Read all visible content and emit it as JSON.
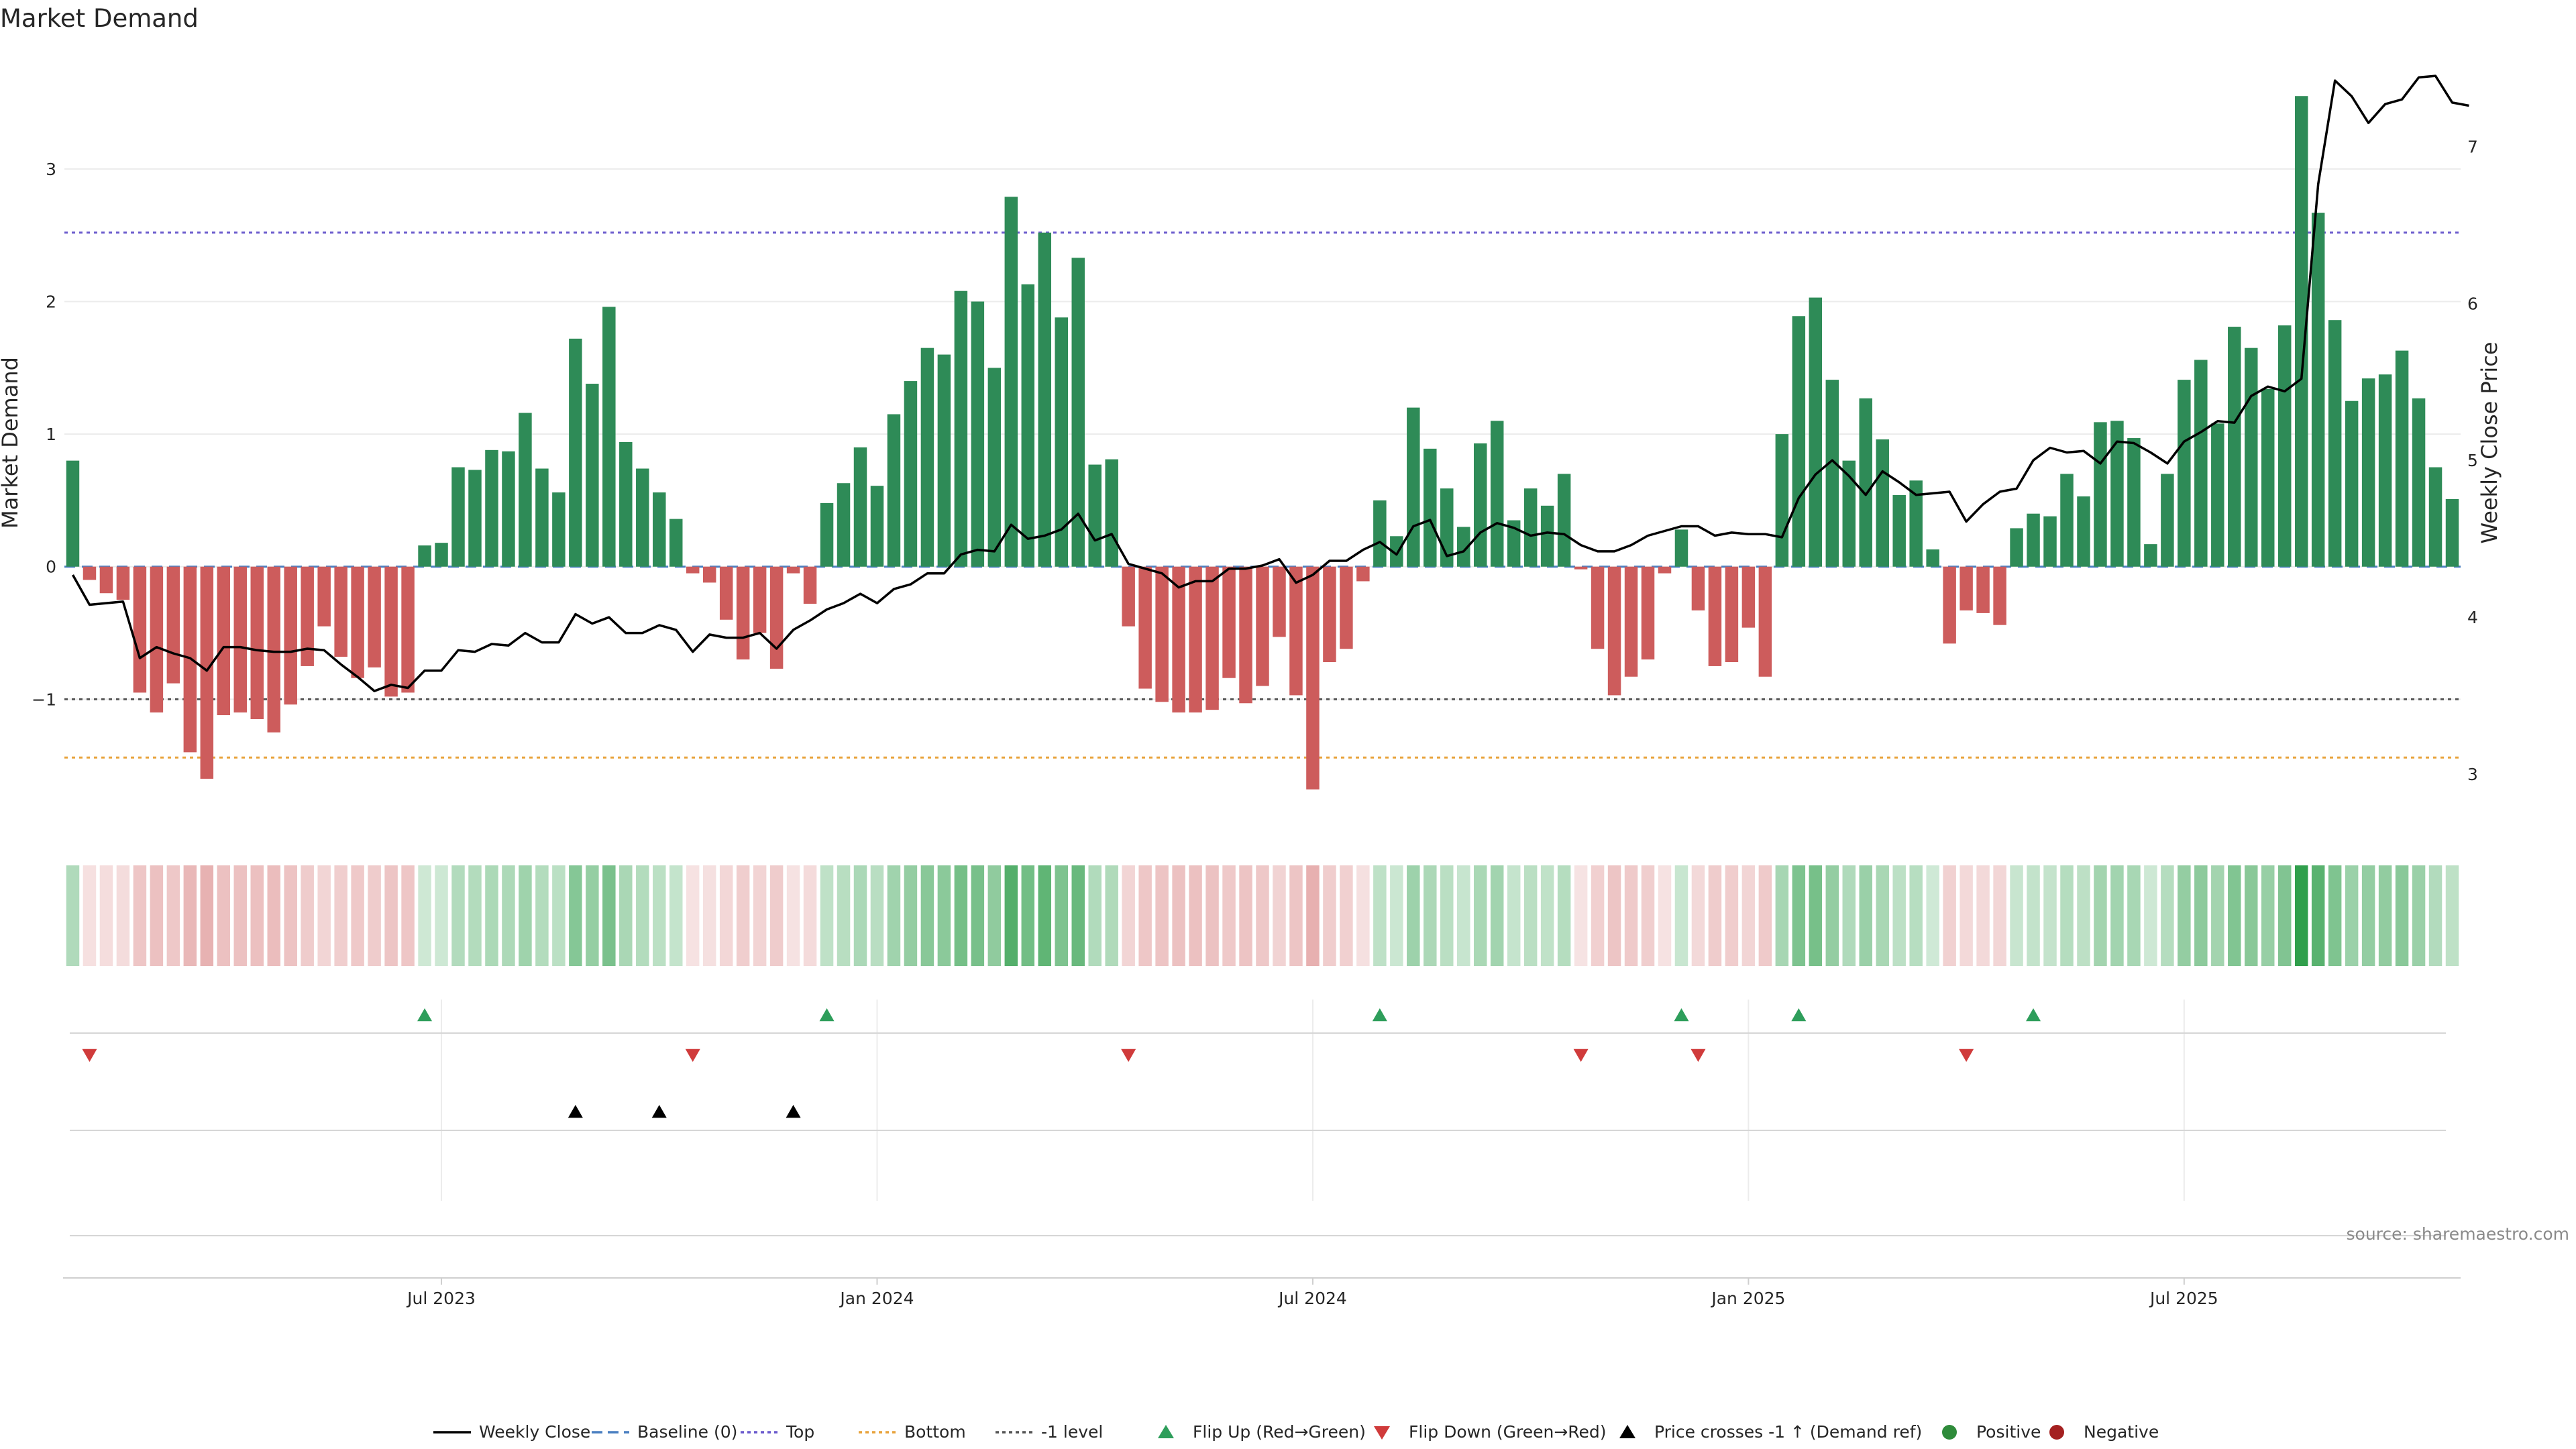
{
  "chart_data": {
    "type": "bar",
    "title": "Market Demand",
    "ylabel": "Market Demand",
    "y2label": "Weekly Close Price",
    "ylim": [
      -1.98,
      3.88
    ],
    "y2lim": [
      2.65,
      7.6
    ],
    "yticks": [
      3,
      2,
      1,
      0,
      -1
    ],
    "yticklabels": [
      "3",
      "2",
      "1",
      "0",
      "−1"
    ],
    "y2ticks": [
      7,
      6,
      5,
      4,
      3
    ],
    "y2ticklabels": [
      "7",
      "6",
      "5",
      "4",
      "3"
    ],
    "grid": true,
    "legend_position": "bottom",
    "levels": {
      "top": 2.52,
      "bottom": -1.44,
      "minus_one": -1.0,
      "baseline": 0
    },
    "x_ticks": [
      {
        "label": "Jul 2023",
        "index": 22
      },
      {
        "label": "Jan 2024",
        "index": 48
      },
      {
        "label": "Jul 2024",
        "index": 74
      },
      {
        "label": "Jan 2025",
        "index": 100
      },
      {
        "label": "Jul 2025",
        "index": 126
      }
    ],
    "demand": [
      0.8,
      -0.1,
      -0.2,
      -0.25,
      -0.95,
      -1.1,
      -0.88,
      -1.4,
      -1.6,
      -1.12,
      -1.1,
      -1.15,
      -1.25,
      -1.04,
      -0.75,
      -0.45,
      -0.68,
      -0.84,
      -0.76,
      -0.98,
      -0.95,
      0.16,
      0.18,
      0.75,
      0.73,
      0.88,
      0.87,
      1.16,
      0.74,
      0.56,
      1.72,
      1.38,
      1.96,
      0.94,
      0.74,
      0.56,
      0.36,
      -0.05,
      -0.12,
      -0.4,
      -0.7,
      -0.5,
      -0.77,
      -0.05,
      -0.28,
      0.48,
      0.63,
      0.9,
      0.61,
      1.15,
      1.4,
      1.65,
      1.6,
      2.08,
      2.0,
      1.5,
      2.79,
      2.13,
      2.52,
      1.88,
      2.33,
      0.77,
      0.81,
      -0.45,
      -0.92,
      -1.02,
      -1.1,
      -1.1,
      -1.08,
      -0.84,
      -1.03,
      -0.9,
      -0.53,
      -0.97,
      -1.68,
      -0.72,
      -0.62,
      -0.11,
      0.5,
      0.23,
      1.2,
      0.89,
      0.59,
      0.3,
      0.93,
      1.1,
      0.35,
      0.59,
      0.46,
      0.7,
      -0.02,
      -0.62,
      -0.97,
      -0.83,
      -0.7,
      -0.05,
      0.28,
      -0.33,
      -0.75,
      -0.72,
      -0.46,
      -0.83,
      1.0,
      1.89,
      2.03,
      1.41,
      0.8,
      1.27,
      0.96,
      0.54,
      0.65,
      0.13,
      -0.58,
      -0.33,
      -0.35,
      -0.44,
      0.29,
      0.4,
      0.38,
      0.7,
      0.53,
      1.09,
      1.1,
      0.97,
      0.17,
      0.7,
      1.41,
      1.56,
      1.08,
      1.81,
      1.65,
      1.34,
      1.82,
      3.55,
      2.67,
      1.86,
      1.25,
      1.42,
      1.45,
      1.63,
      1.27,
      0.75,
      0.51
    ],
    "weekly_close": [
      4.27,
      4.08,
      4.09,
      4.1,
      3.74,
      3.81,
      3.77,
      3.74,
      3.66,
      3.81,
      3.81,
      3.79,
      3.78,
      3.78,
      3.8,
      3.79,
      3.7,
      3.62,
      3.53,
      3.57,
      3.55,
      3.66,
      3.66,
      3.79,
      3.78,
      3.83,
      3.82,
      3.9,
      3.84,
      3.84,
      4.02,
      3.96,
      4.0,
      3.9,
      3.9,
      3.95,
      3.92,
      3.78,
      3.89,
      3.87,
      3.87,
      3.9,
      3.8,
      3.92,
      3.98,
      4.05,
      4.09,
      4.15,
      4.09,
      4.18,
      4.21,
      4.28,
      4.28,
      4.4,
      4.43,
      4.42,
      4.59,
      4.5,
      4.52,
      4.56,
      4.66,
      4.49,
      4.53,
      4.34,
      4.31,
      4.28,
      4.19,
      4.23,
      4.23,
      4.31,
      4.31,
      4.33,
      4.37,
      4.22,
      4.27,
      4.36,
      4.36,
      4.43,
      4.48,
      4.4,
      4.58,
      4.62,
      4.39,
      4.42,
      4.54,
      4.6,
      4.57,
      4.52,
      4.54,
      4.53,
      4.46,
      4.42,
      4.42,
      4.46,
      4.52,
      4.55,
      4.58,
      4.58,
      4.52,
      4.54,
      4.53,
      4.53,
      4.51,
      4.76,
      4.91,
      5.0,
      4.9,
      4.78,
      4.93,
      4.86,
      4.78,
      4.79,
      4.8,
      4.61,
      4.72,
      4.8,
      4.82,
      5.0,
      5.08,
      5.05,
      5.06,
      4.98,
      5.12,
      5.11,
      5.05,
      4.98,
      5.12,
      5.18,
      5.25,
      5.24,
      5.41,
      5.47,
      5.44,
      5.52,
      6.76,
      7.42,
      7.32,
      7.15,
      7.27,
      7.3,
      7.44,
      7.45,
      7.28,
      7.26
    ],
    "flip_up_indices": [
      21,
      45,
      78,
      96,
      103,
      117
    ],
    "flip_down_indices": [
      1,
      37,
      63,
      90,
      97,
      113
    ],
    "price_cross_indices": [
      30,
      35,
      43
    ],
    "legend": [
      {
        "label": "Weekly Close",
        "kind": "line",
        "color": "#000000"
      },
      {
        "label": "Baseline (0)",
        "kind": "dash",
        "color": "#4a7fc1"
      },
      {
        "label": "Top",
        "kind": "dot",
        "color": "#6a5acd"
      },
      {
        "label": "Bottom",
        "kind": "dot",
        "color": "#e8a33c"
      },
      {
        "label": "-1 level",
        "kind": "dot",
        "color": "#555555"
      },
      {
        "label": "Flip Up (Red→Green)",
        "kind": "tri-up",
        "color": "#2e9e5b"
      },
      {
        "label": "Flip Down (Green→Red)",
        "kind": "tri-down",
        "color": "#d03b3b"
      },
      {
        "label": "Price crosses -1 ↑ (Demand ref)",
        "kind": "tri-up",
        "color": "#000000"
      },
      {
        "label": "Positive",
        "kind": "circle",
        "color": "#2e8b3a"
      },
      {
        "label": "Negative",
        "kind": "circle",
        "color": "#a42020"
      }
    ],
    "colors": {
      "positive_bar": "#2e8b57",
      "negative_bar": "#cd5c5c",
      "flip_up": "#2e9e5b",
      "flip_down": "#d03b3b",
      "price_line": "#000000"
    }
  },
  "source_text": "source: sharemaestro.com"
}
